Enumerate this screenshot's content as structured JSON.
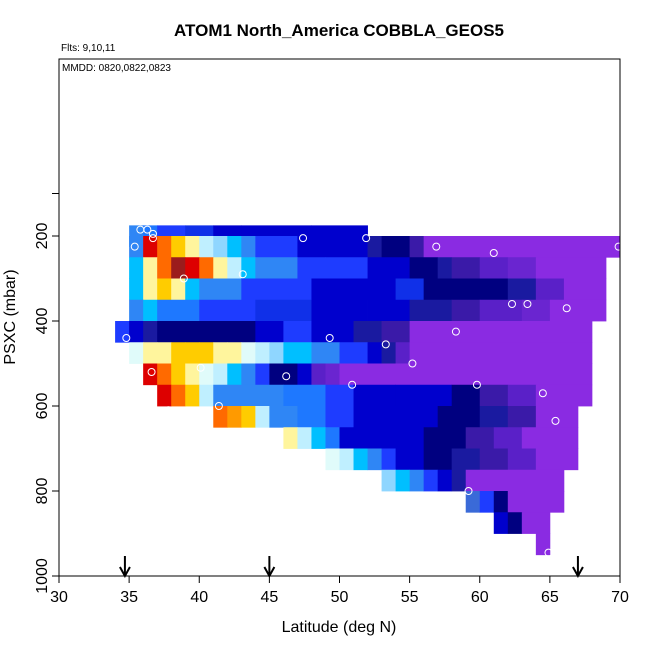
{
  "chart_data": {
    "type": "heatmap",
    "title": "ATOM1 North_America COBBLA_GEOS5",
    "annotations": [
      "Flts: 9,10,11",
      "MMDD: 0820,0822,0823"
    ],
    "xlabel": "Latitude (deg N)",
    "ylabel": "PSXC (mbar)",
    "xlim": [
      30,
      70
    ],
    "ylim": [
      1000,
      100
    ],
    "x_ticks": [
      30,
      35,
      40,
      45,
      50,
      55,
      60,
      65,
      70
    ],
    "y_ticks": [
      200,
      400,
      600,
      800,
      1000
    ],
    "grid": false,
    "colormap": [
      "#000080",
      "#0000cd",
      "#1e3cff",
      "#2f86f5",
      "#00bfff",
      "#bfefff",
      "#fff59d",
      "#ffcc00",
      "#ff6a00",
      "#dd0000",
      "#9b1c1c",
      "#8a2be2"
    ],
    "rows": [
      {
        "p": 200,
        "cells": [
          [
            35,
            36,
            "#2f86f5"
          ],
          [
            36,
            37,
            "#1e78ff"
          ],
          [
            37,
            39,
            "#1e3cff"
          ],
          [
            39,
            41,
            "#1030e8"
          ],
          [
            41,
            43,
            "#0000cd"
          ],
          [
            43,
            48,
            "#0000cd"
          ],
          [
            48,
            52,
            "#0000cd"
          ]
        ]
      },
      {
        "p": 225,
        "cells": [
          [
            35,
            36,
            "#2f86f5"
          ],
          [
            36,
            37,
            "#dd0000"
          ],
          [
            37,
            38,
            "#ff6a00"
          ],
          [
            38,
            39,
            "#ffcc00"
          ],
          [
            39,
            40,
            "#fff59d"
          ],
          [
            40,
            41,
            "#bfefff"
          ],
          [
            41,
            42,
            "#8fd6ff"
          ],
          [
            42,
            43,
            "#00bfff"
          ],
          [
            43,
            44,
            "#2f86f5"
          ],
          [
            44,
            47,
            "#1e3cff"
          ],
          [
            47,
            52,
            "#0000cd"
          ],
          [
            52,
            53,
            "#1a1aa0"
          ],
          [
            53,
            55,
            "#000080"
          ],
          [
            55,
            56,
            "#3a1aa8"
          ],
          [
            56,
            70,
            "#8a2be2"
          ]
        ]
      },
      {
        "p": 275,
        "cells": [
          [
            35,
            36,
            "#00bfff"
          ],
          [
            36,
            37,
            "#fff59d"
          ],
          [
            37,
            38,
            "#ff6a00"
          ],
          [
            38,
            39,
            "#9b1c1c"
          ],
          [
            39,
            40,
            "#dd0000"
          ],
          [
            40,
            41,
            "#ff6a00"
          ],
          [
            41,
            42,
            "#fff59d"
          ],
          [
            42,
            43,
            "#bfefff"
          ],
          [
            43,
            44,
            "#00bfff"
          ],
          [
            44,
            47,
            "#2f86f5"
          ],
          [
            47,
            49,
            "#1e3cff"
          ],
          [
            49,
            52,
            "#1e3cff"
          ],
          [
            52,
            55,
            "#0000cd"
          ],
          [
            55,
            57,
            "#000080"
          ],
          [
            57,
            58,
            "#1a1aa0"
          ],
          [
            58,
            60,
            "#3a1aa8"
          ],
          [
            60,
            62,
            "#5a20c8"
          ],
          [
            62,
            64,
            "#6a25d0"
          ],
          [
            64,
            69,
            "#8a2be2"
          ]
        ]
      },
      {
        "p": 325,
        "cells": [
          [
            35,
            36,
            "#00bfff"
          ],
          [
            36,
            37,
            "#fff59d"
          ],
          [
            37,
            38,
            "#ffcc00"
          ],
          [
            38,
            39,
            "#fff59d"
          ],
          [
            39,
            40,
            "#00bfff"
          ],
          [
            40,
            43,
            "#2f86f5"
          ],
          [
            43,
            48,
            "#1e3cff"
          ],
          [
            48,
            54,
            "#0000cd"
          ],
          [
            54,
            56,
            "#1030e8"
          ],
          [
            56,
            60,
            "#000080"
          ],
          [
            60,
            62,
            "#000080"
          ],
          [
            62,
            64,
            "#1a1aa0"
          ],
          [
            64,
            66,
            "#5a20c8"
          ],
          [
            66,
            69,
            "#8a2be2"
          ]
        ]
      },
      {
        "p": 375,
        "cells": [
          [
            35,
            36,
            "#2f86f5"
          ],
          [
            36,
            37,
            "#00bfff"
          ],
          [
            37,
            40,
            "#1e78ff"
          ],
          [
            40,
            44,
            "#1e3cff"
          ],
          [
            44,
            48,
            "#1030e8"
          ],
          [
            48,
            52,
            "#0000cd"
          ],
          [
            52,
            55,
            "#0000cd"
          ],
          [
            55,
            58,
            "#1a1aa0"
          ],
          [
            58,
            60,
            "#3a1aa8"
          ],
          [
            60,
            63,
            "#5a20c8"
          ],
          [
            63,
            65,
            "#6a25d0"
          ],
          [
            65,
            69,
            "#8a2be2"
          ]
        ]
      },
      {
        "p": 425,
        "cells": [
          [
            34,
            35,
            "#1e3cff"
          ],
          [
            35,
            36,
            "#0000cd"
          ],
          [
            36,
            37,
            "#1a1aa0"
          ],
          [
            37,
            44,
            "#000080"
          ],
          [
            44,
            46,
            "#0000cd"
          ],
          [
            46,
            48,
            "#1e3cff"
          ],
          [
            48,
            51,
            "#0000cd"
          ],
          [
            51,
            53,
            "#1a1aa0"
          ],
          [
            53,
            55,
            "#3a1aa8"
          ],
          [
            55,
            68,
            "#8a2be2"
          ]
        ]
      },
      {
        "p": 475,
        "cells": [
          [
            35,
            36,
            "#e0fbfa"
          ],
          [
            36,
            37,
            "#fff59d"
          ],
          [
            37,
            38,
            "#fff59d"
          ],
          [
            38,
            39,
            "#ffcc00"
          ],
          [
            39,
            40,
            "#ffcc00"
          ],
          [
            40,
            41,
            "#ffcc00"
          ],
          [
            41,
            42,
            "#fff59d"
          ],
          [
            42,
            43,
            "#fff59d"
          ],
          [
            43,
            44,
            "#e0fbfa"
          ],
          [
            44,
            45,
            "#bfefff"
          ],
          [
            45,
            46,
            "#8fd6ff"
          ],
          [
            46,
            48,
            "#00bfff"
          ],
          [
            48,
            50,
            "#2f86f5"
          ],
          [
            50,
            52,
            "#1e3cff"
          ],
          [
            52,
            53,
            "#0000cd"
          ],
          [
            53,
            54,
            "#1a1aa0"
          ],
          [
            54,
            55,
            "#5a20c8"
          ],
          [
            55,
            68,
            "#8a2be2"
          ]
        ]
      },
      {
        "p": 525,
        "cells": [
          [
            36,
            37,
            "#dd0000"
          ],
          [
            37,
            38,
            "#ff6a00"
          ],
          [
            38,
            39,
            "#ffcc00"
          ],
          [
            39,
            40,
            "#fff59d"
          ],
          [
            40,
            41,
            "#e0fbfa"
          ],
          [
            41,
            42,
            "#bfefff"
          ],
          [
            42,
            43,
            "#00bfff"
          ],
          [
            43,
            44,
            "#2f86f5"
          ],
          [
            44,
            45,
            "#1e3cff"
          ],
          [
            45,
            47,
            "#000080"
          ],
          [
            47,
            48,
            "#0000cd"
          ],
          [
            48,
            49,
            "#5a20c8"
          ],
          [
            49,
            50,
            "#6a25d0"
          ],
          [
            50,
            68,
            "#8a2be2"
          ]
        ]
      },
      {
        "p": 575,
        "cells": [
          [
            37,
            38,
            "#dd0000"
          ],
          [
            38,
            39,
            "#ff6a00"
          ],
          [
            39,
            40,
            "#ffcc00"
          ],
          [
            40,
            41,
            "#bfefff"
          ],
          [
            41,
            46,
            "#2f86f5"
          ],
          [
            46,
            49,
            "#1e78ff"
          ],
          [
            49,
            51,
            "#1e3cff"
          ],
          [
            51,
            54,
            "#0000cd"
          ],
          [
            54,
            58,
            "#0000cd"
          ],
          [
            58,
            60,
            "#000080"
          ],
          [
            60,
            62,
            "#3a1aa8"
          ],
          [
            62,
            64,
            "#5a20c8"
          ],
          [
            64,
            68,
            "#8a2be2"
          ]
        ]
      },
      {
        "p": 625,
        "cells": [
          [
            41,
            42,
            "#ff6a00"
          ],
          [
            42,
            43,
            "#ff9a00"
          ],
          [
            43,
            44,
            "#ffcc00"
          ],
          [
            44,
            45,
            "#bfefff"
          ],
          [
            45,
            47,
            "#2f86f5"
          ],
          [
            47,
            49,
            "#1e78ff"
          ],
          [
            49,
            51,
            "#1e3cff"
          ],
          [
            51,
            53,
            "#0000cd"
          ],
          [
            53,
            57,
            "#0000cd"
          ],
          [
            57,
            60,
            "#000080"
          ],
          [
            60,
            62,
            "#1a1aa0"
          ],
          [
            62,
            64,
            "#3a1aa8"
          ],
          [
            64,
            67,
            "#8a2be2"
          ]
        ]
      },
      {
        "p": 675,
        "cells": [
          [
            46,
            47,
            "#fff59d"
          ],
          [
            47,
            48,
            "#bfefff"
          ],
          [
            48,
            49,
            "#00bfff"
          ],
          [
            49,
            50,
            "#1e78ff"
          ],
          [
            50,
            51,
            "#0000cd"
          ],
          [
            51,
            56,
            "#0000cd"
          ],
          [
            56,
            59,
            "#000080"
          ],
          [
            59,
            61,
            "#3a1aa8"
          ],
          [
            61,
            63,
            "#5a20c8"
          ],
          [
            63,
            67,
            "#8a2be2"
          ]
        ]
      },
      {
        "p": 725,
        "cells": [
          [
            49,
            50,
            "#e0fbfa"
          ],
          [
            50,
            51,
            "#bfefff"
          ],
          [
            51,
            52,
            "#00bfff"
          ],
          [
            52,
            53,
            "#2f86f5"
          ],
          [
            53,
            54,
            "#1e3cff"
          ],
          [
            54,
            56,
            "#0000cd"
          ],
          [
            56,
            58,
            "#000080"
          ],
          [
            58,
            60,
            "#1a1aa0"
          ],
          [
            60,
            62,
            "#3a1aa8"
          ],
          [
            62,
            64,
            "#5a20c8"
          ],
          [
            64,
            67,
            "#8a2be2"
          ]
        ]
      },
      {
        "p": 775,
        "cells": [
          [
            53,
            54,
            "#8fd6ff"
          ],
          [
            54,
            55,
            "#00bfff"
          ],
          [
            55,
            56,
            "#2f86f5"
          ],
          [
            56,
            57,
            "#1e3cff"
          ],
          [
            57,
            58,
            "#0000cd"
          ],
          [
            58,
            59,
            "#1a1aa0"
          ],
          [
            59,
            66,
            "#8a2be2"
          ]
        ]
      },
      {
        "p": 825,
        "cells": [
          [
            59,
            60,
            "#3a6ad8"
          ],
          [
            60,
            61,
            "#1e3cff"
          ],
          [
            61,
            62,
            "#000080"
          ],
          [
            62,
            66,
            "#8a2be2"
          ]
        ]
      },
      {
        "p": 875,
        "cells": [
          [
            61,
            62,
            "#0000cd"
          ],
          [
            62,
            63,
            "#000080"
          ],
          [
            63,
            65,
            "#8a2be2"
          ]
        ]
      },
      {
        "p": 925,
        "cells": [
          [
            64,
            65,
            "#8a2be2"
          ]
        ]
      }
    ],
    "row_height_mbar": 50,
    "observations": [
      {
        "lat": 35.8,
        "p": 185
      },
      {
        "lat": 36.3,
        "p": 185
      },
      {
        "lat": 36.7,
        "p": 195
      },
      {
        "lat": 36.7,
        "p": 205
      },
      {
        "lat": 35.4,
        "p": 225
      },
      {
        "lat": 47.4,
        "p": 205
      },
      {
        "lat": 51.9,
        "p": 205
      },
      {
        "lat": 56.9,
        "p": 225
      },
      {
        "lat": 61.0,
        "p": 240
      },
      {
        "lat": 69.9,
        "p": 225
      },
      {
        "lat": 43.1,
        "p": 290
      },
      {
        "lat": 38.9,
        "p": 300
      },
      {
        "lat": 62.3,
        "p": 360
      },
      {
        "lat": 63.4,
        "p": 360
      },
      {
        "lat": 66.2,
        "p": 370
      },
      {
        "lat": 34.8,
        "p": 440
      },
      {
        "lat": 49.3,
        "p": 440
      },
      {
        "lat": 58.3,
        "p": 425
      },
      {
        "lat": 53.3,
        "p": 455
      },
      {
        "lat": 55.2,
        "p": 500
      },
      {
        "lat": 36.6,
        "p": 520
      },
      {
        "lat": 40.1,
        "p": 510
      },
      {
        "lat": 46.2,
        "p": 530
      },
      {
        "lat": 50.9,
        "p": 550
      },
      {
        "lat": 59.8,
        "p": 550
      },
      {
        "lat": 64.5,
        "p": 570
      },
      {
        "lat": 37.8,
        "p": 610
      },
      {
        "lat": 41.4,
        "p": 600
      },
      {
        "lat": 65.4,
        "p": 635
      },
      {
        "lat": 59.2,
        "p": 800
      },
      {
        "lat": 64.9,
        "p": 945
      }
    ],
    "arrows_lat": [
      34.7,
      45.0,
      67.0
    ]
  }
}
